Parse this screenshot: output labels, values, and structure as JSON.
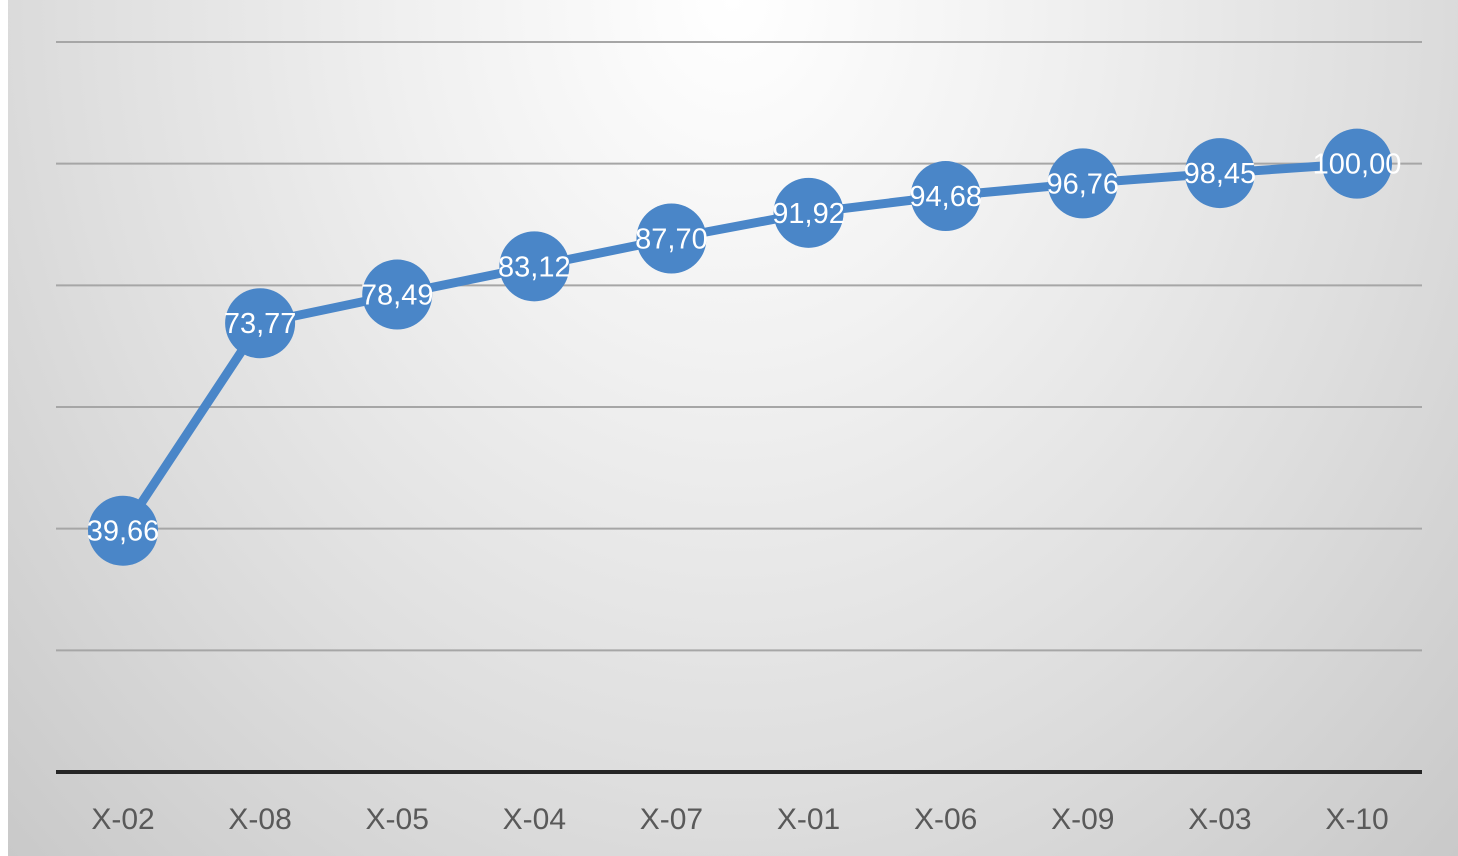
{
  "chart_data": {
    "type": "line",
    "categories": [
      "X-02",
      "X-08",
      "X-05",
      "X-04",
      "X-07",
      "X-01",
      "X-06",
      "X-09",
      "X-03",
      "X-10"
    ],
    "values": [
      39.66,
      73.77,
      78.49,
      83.12,
      87.7,
      91.92,
      94.68,
      96.76,
      98.45,
      100.0
    ],
    "data_labels": [
      "39,66",
      "73,77",
      "78,49",
      "83,12",
      "87,70",
      "91,92",
      "94,68",
      "96,76",
      "98,45",
      "100,00"
    ],
    "ylim": [
      0,
      120
    ],
    "y_gridlines": [
      20,
      40,
      60,
      80,
      100,
      120
    ],
    "grid": true,
    "legend": "none",
    "colors": {
      "series": "#4a86c8",
      "label": "#ffffff",
      "gridline": "#a6a6a6",
      "axis": "#262626",
      "tick_label": "#595959"
    }
  }
}
